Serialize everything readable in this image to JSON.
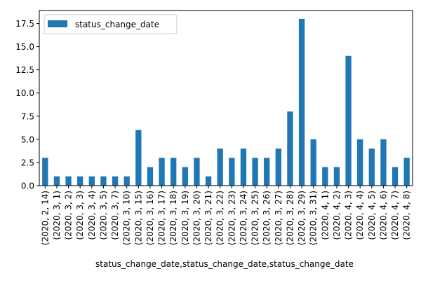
{
  "chart_data": {
    "type": "bar",
    "categories": [
      "(2020, 2, 14)",
      "(2020, 3, 1)",
      "(2020, 3, 2)",
      "(2020, 3, 3)",
      "(2020, 3, 4)",
      "(2020, 3, 5)",
      "(2020, 3, 7)",
      "(2020, 3, 10)",
      "(2020, 3, 15)",
      "(2020, 3, 16)",
      "(2020, 3, 17)",
      "(2020, 3, 18)",
      "(2020, 3, 19)",
      "(2020, 3, 20)",
      "(2020, 3, 21)",
      "(2020, 3, 22)",
      "(2020, 3, 23)",
      "(2020, 3, 24)",
      "(2020, 3, 25)",
      "(2020, 3, 26)",
      "(2020, 3, 27)",
      "(2020, 3, 28)",
      "(2020, 3, 29)",
      "(2020, 3, 31)",
      "(2020, 4, 1)",
      "(2020, 4, 2)",
      "(2020, 4, 3)",
      "(2020, 4, 4)",
      "(2020, 4, 5)",
      "(2020, 4, 6)",
      "(2020, 4, 7)",
      "(2020, 4, 8)"
    ],
    "series": [
      {
        "name": "status_change_date",
        "color": "#1f77b4",
        "values": [
          3,
          1,
          1,
          1,
          1,
          1,
          1,
          1,
          6,
          2,
          3,
          3,
          2,
          3,
          1,
          4,
          3,
          4,
          3,
          3,
          4,
          8,
          18,
          5,
          2,
          2,
          14,
          5,
          4,
          5,
          2,
          3
        ]
      }
    ],
    "xlabel": "status_change_date,status_change_date,status_change_date",
    "ylabel": "",
    "ylim": [
      0,
      18.9
    ],
    "yticks": [
      "0.0",
      "2.5",
      "5.0",
      "7.5",
      "10.0",
      "12.5",
      "15.0",
      "17.5"
    ],
    "legend": {
      "position": "top-left",
      "entries": [
        "status_change_date"
      ]
    },
    "grid": false
  }
}
